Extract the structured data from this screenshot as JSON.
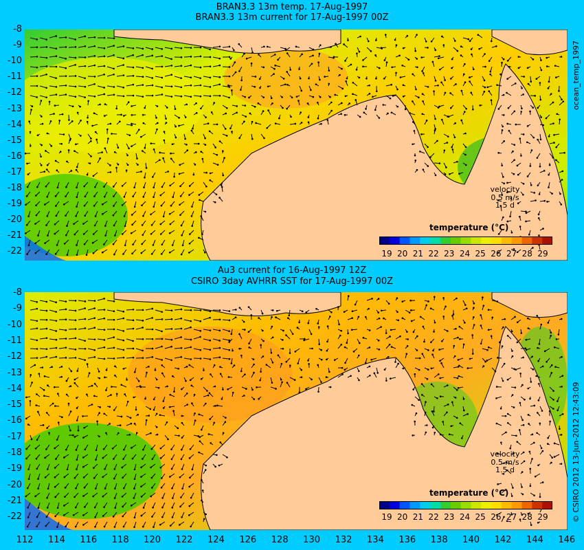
{
  "panels": [
    {
      "id": "top",
      "title_line1": "BRAN3.3 13m temp. 17-Aug-1997",
      "title_line2": "BRAN3.3 13m current for 17-Aug-1997 00Z",
      "side_label": "ocean_temp_1997",
      "velocity_label": "velocity",
      "velocity_scale": "0.5 m/s",
      "velocity_time": "1.5 d",
      "colorbar_title": "temperature (°C)",
      "colorbar_ticks": [
        "19",
        "20",
        "21",
        "22",
        "23",
        "24",
        "25",
        "26",
        "27",
        "28",
        "29"
      ]
    },
    {
      "id": "bottom",
      "title_line1": "Au3 current for 16-Aug-1997 12Z",
      "title_line2": "CSIRO 3day AVHRR SST for 17-Aug-1997 00Z",
      "side_label": "© CSIRO 2012  13-Jun-2012 12:43:09",
      "velocity_label": "velocity",
      "velocity_scale": "0.5 m/s",
      "velocity_time": "1.5 d",
      "colorbar_title": "temperature (°C)",
      "colorbar_ticks": [
        "19",
        "20",
        "21",
        "22",
        "23",
        "24",
        "25",
        "26",
        "27",
        "28",
        "29"
      ]
    }
  ],
  "y_ticks": [
    "-8",
    "-9",
    "-10",
    "-11",
    "-12",
    "-13",
    "-14",
    "-15",
    "-16",
    "-17",
    "-18",
    "-19",
    "-20",
    "-21",
    "-22"
  ],
  "x_ticks": [
    "112",
    "114",
    "116",
    "118",
    "120",
    "122",
    "124",
    "126",
    "128",
    "130",
    "132",
    "134",
    "136",
    "138",
    "140",
    "142",
    "144",
    "146"
  ],
  "colors": {
    "background": "#00ccff",
    "land": "#ffcc99",
    "ocean_warm": "#ffaa00",
    "ocean_mid": "#eedd00",
    "ocean_cool": "#44cc00",
    "ocean_cold": "#0066ff"
  }
}
